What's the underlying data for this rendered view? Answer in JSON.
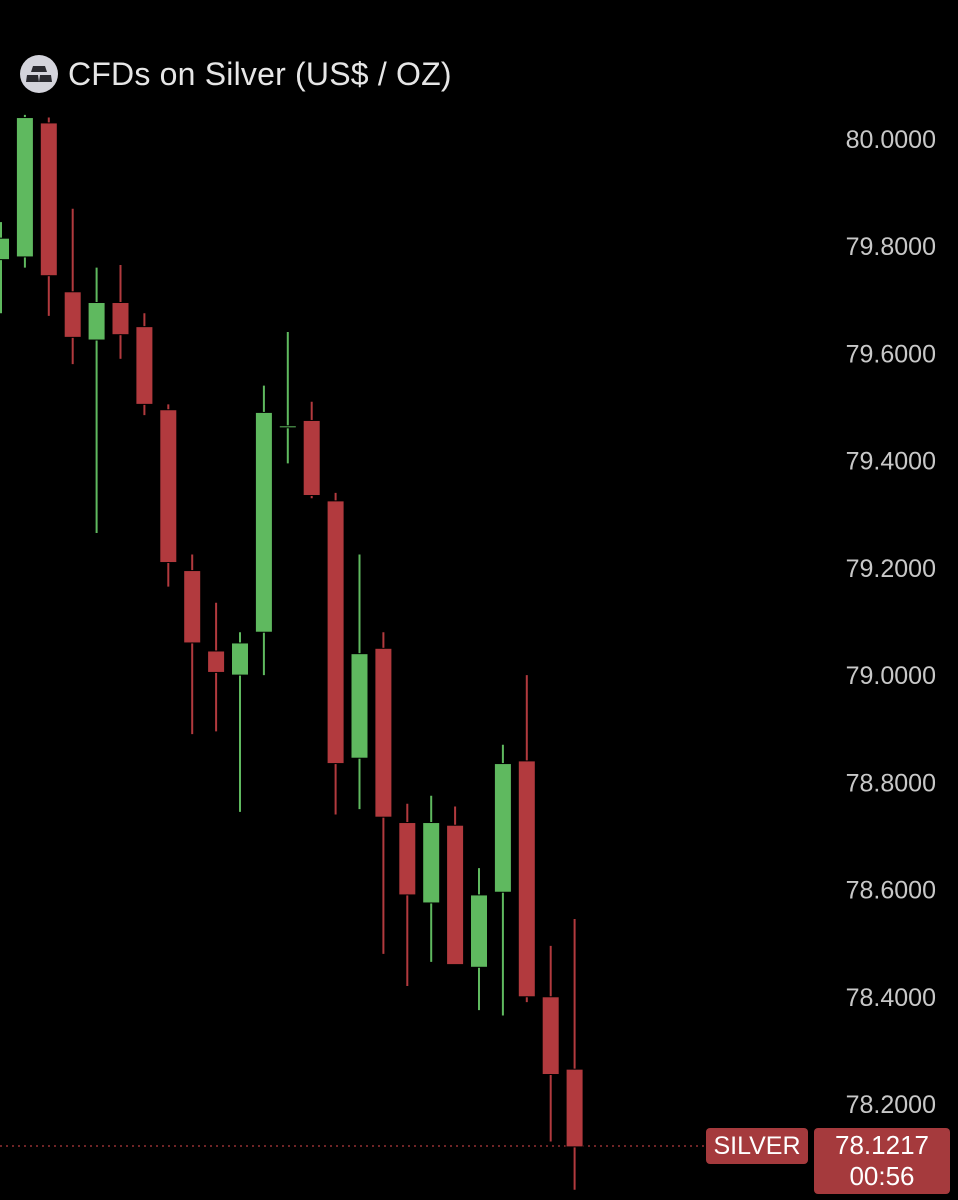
{
  "header": {
    "title": "CFDs on Silver (US$ / OZ)",
    "icon": "silver-bars-icon"
  },
  "colors": {
    "background": "#000000",
    "up": "#5fb95f",
    "down": "#b23a3e",
    "badge": "#a53a3d",
    "axis_text": "#c8c8c8"
  },
  "chart_data": {
    "type": "candlestick",
    "title": "CFDs on Silver (US$ / OZ)",
    "ylim": [
      78.05,
      80.05
    ],
    "y_ticks": [
      "80.0000",
      "79.8000",
      "79.6000",
      "79.4000",
      "79.2000",
      "79.0000",
      "78.8000",
      "78.6000",
      "78.4000",
      "78.2000"
    ],
    "candles": [
      {
        "open": 79.775,
        "high": 79.845,
        "low": 79.675,
        "close": 79.815
      },
      {
        "open": 79.78,
        "high": 80.045,
        "low": 79.76,
        "close": 80.04
      },
      {
        "open": 80.03,
        "high": 80.04,
        "low": 79.67,
        "close": 79.745
      },
      {
        "open": 79.715,
        "high": 79.87,
        "low": 79.58,
        "close": 79.63
      },
      {
        "open": 79.625,
        "high": 79.76,
        "low": 79.265,
        "close": 79.695
      },
      {
        "open": 79.695,
        "high": 79.765,
        "low": 79.59,
        "close": 79.635
      },
      {
        "open": 79.65,
        "high": 79.675,
        "low": 79.485,
        "close": 79.505
      },
      {
        "open": 79.495,
        "high": 79.505,
        "low": 79.165,
        "close": 79.21
      },
      {
        "open": 79.195,
        "high": 79.225,
        "low": 78.89,
        "close": 79.06
      },
      {
        "open": 79.045,
        "high": 79.135,
        "low": 78.895,
        "close": 79.005
      },
      {
        "open": 79.0,
        "high": 79.08,
        "low": 78.745,
        "close": 79.06
      },
      {
        "open": 79.08,
        "high": 79.54,
        "low": 79.0,
        "close": 79.49
      },
      {
        "open": 79.465,
        "high": 79.64,
        "low": 79.395,
        "close": 79.465
      },
      {
        "open": 79.475,
        "high": 79.51,
        "low": 79.33,
        "close": 79.335
      },
      {
        "open": 79.325,
        "high": 79.34,
        "low": 78.74,
        "close": 78.835
      },
      {
        "open": 78.845,
        "high": 79.225,
        "low": 78.75,
        "close": 79.04
      },
      {
        "open": 79.05,
        "high": 79.08,
        "low": 78.48,
        "close": 78.735
      },
      {
        "open": 78.725,
        "high": 78.76,
        "low": 78.42,
        "close": 78.59
      },
      {
        "open": 78.575,
        "high": 78.775,
        "low": 78.465,
        "close": 78.725
      },
      {
        "open": 78.72,
        "high": 78.755,
        "low": 78.46,
        "close": 78.46
      },
      {
        "open": 78.455,
        "high": 78.64,
        "low": 78.375,
        "close": 78.59
      },
      {
        "open": 78.595,
        "high": 78.87,
        "low": 78.365,
        "close": 78.835
      },
      {
        "open": 78.84,
        "high": 79.0,
        "low": 78.39,
        "close": 78.4
      },
      {
        "open": 78.4,
        "high": 78.495,
        "low": 78.13,
        "close": 78.255
      },
      {
        "open": 78.265,
        "high": 78.545,
        "low": 78.04,
        "close": 78.12
      }
    ],
    "last_price": {
      "symbol": "SILVER",
      "value": "78.1217",
      "countdown": "00:56"
    }
  }
}
